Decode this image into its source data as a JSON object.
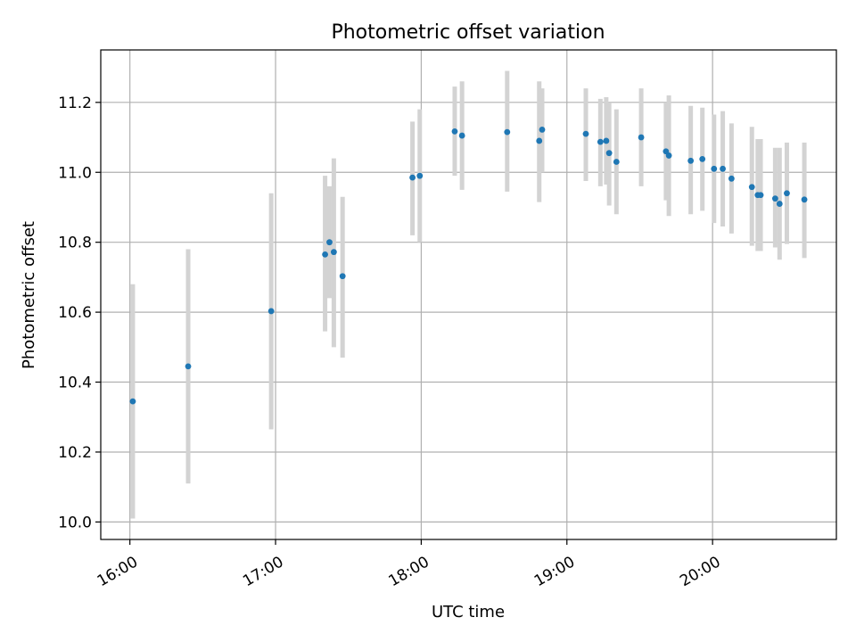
{
  "chart_data": {
    "type": "scatter",
    "title": "Photometric offset variation",
    "xlabel": "UTC time",
    "ylabel": "Photometric offset",
    "x_unit": "hours",
    "xlim": [
      15.8,
      20.85
    ],
    "ylim": [
      9.95,
      11.35
    ],
    "grid": true,
    "x_ticks": [
      {
        "value": 16,
        "label": "16:00"
      },
      {
        "value": 17,
        "label": "17:00"
      },
      {
        "value": 18,
        "label": "18:00"
      },
      {
        "value": 19,
        "label": "19:00"
      },
      {
        "value": 20,
        "label": "20:00"
      }
    ],
    "y_ticks": [
      {
        "value": 10.0,
        "label": "10.0"
      },
      {
        "value": 10.2,
        "label": "10.2"
      },
      {
        "value": 10.4,
        "label": "10.4"
      },
      {
        "value": 10.6,
        "label": "10.6"
      },
      {
        "value": 10.8,
        "label": "10.8"
      },
      {
        "value": 11.0,
        "label": "11.0"
      },
      {
        "value": 11.2,
        "label": "11.2"
      }
    ],
    "marker_color": "#1f77b4",
    "errorbar_color": "#d3d3d3",
    "points": [
      {
        "x": 16.02,
        "y": 10.345,
        "ylo": 10.01,
        "yhi": 10.68
      },
      {
        "x": 16.4,
        "y": 10.445,
        "ylo": 10.11,
        "yhi": 10.78
      },
      {
        "x": 16.97,
        "y": 10.603,
        "ylo": 10.265,
        "yhi": 10.94
      },
      {
        "x": 17.34,
        "y": 10.765,
        "ylo": 10.545,
        "yhi": 10.99
      },
      {
        "x": 17.37,
        "y": 10.8,
        "ylo": 10.64,
        "yhi": 10.96
      },
      {
        "x": 17.4,
        "y": 10.772,
        "ylo": 10.5,
        "yhi": 11.04
      },
      {
        "x": 17.46,
        "y": 10.703,
        "ylo": 10.47,
        "yhi": 10.93
      },
      {
        "x": 17.94,
        "y": 10.985,
        "ylo": 10.82,
        "yhi": 11.145
      },
      {
        "x": 17.99,
        "y": 10.99,
        "ylo": 10.8,
        "yhi": 11.18
      },
      {
        "x": 18.23,
        "y": 11.117,
        "ylo": 10.99,
        "yhi": 11.245
      },
      {
        "x": 18.28,
        "y": 11.105,
        "ylo": 10.95,
        "yhi": 11.26
      },
      {
        "x": 18.59,
        "y": 11.115,
        "ylo": 10.945,
        "yhi": 11.29
      },
      {
        "x": 18.81,
        "y": 11.09,
        "ylo": 10.915,
        "yhi": 11.26
      },
      {
        "x": 18.83,
        "y": 11.122,
        "ylo": 11.0,
        "yhi": 11.24
      },
      {
        "x": 19.13,
        "y": 11.11,
        "ylo": 10.975,
        "yhi": 11.24
      },
      {
        "x": 19.23,
        "y": 11.087,
        "ylo": 10.96,
        "yhi": 11.21
      },
      {
        "x": 19.27,
        "y": 11.09,
        "ylo": 10.965,
        "yhi": 11.215
      },
      {
        "x": 19.29,
        "y": 11.055,
        "ylo": 10.905,
        "yhi": 11.2
      },
      {
        "x": 19.34,
        "y": 11.03,
        "ylo": 10.88,
        "yhi": 11.18
      },
      {
        "x": 19.51,
        "y": 11.1,
        "ylo": 10.96,
        "yhi": 11.24
      },
      {
        "x": 19.68,
        "y": 11.06,
        "ylo": 10.92,
        "yhi": 11.2
      },
      {
        "x": 19.7,
        "y": 11.048,
        "ylo": 10.875,
        "yhi": 11.22
      },
      {
        "x": 19.85,
        "y": 11.033,
        "ylo": 10.88,
        "yhi": 11.19
      },
      {
        "x": 19.93,
        "y": 11.038,
        "ylo": 10.89,
        "yhi": 11.185
      },
      {
        "x": 20.01,
        "y": 11.01,
        "ylo": 10.855,
        "yhi": 11.165
      },
      {
        "x": 20.07,
        "y": 11.01,
        "ylo": 10.845,
        "yhi": 11.175
      },
      {
        "x": 20.13,
        "y": 10.982,
        "ylo": 10.825,
        "yhi": 11.14
      },
      {
        "x": 20.27,
        "y": 10.958,
        "ylo": 10.79,
        "yhi": 11.13
      },
      {
        "x": 20.31,
        "y": 10.935,
        "ylo": 10.775,
        "yhi": 11.095
      },
      {
        "x": 20.33,
        "y": 10.935,
        "ylo": 10.775,
        "yhi": 11.095
      },
      {
        "x": 20.43,
        "y": 10.925,
        "ylo": 10.785,
        "yhi": 11.07
      },
      {
        "x": 20.46,
        "y": 10.91,
        "ylo": 10.75,
        "yhi": 11.07
      },
      {
        "x": 20.51,
        "y": 10.94,
        "ylo": 10.795,
        "yhi": 11.085
      },
      {
        "x": 20.63,
        "y": 10.922,
        "ylo": 10.755,
        "yhi": 11.085
      }
    ]
  }
}
